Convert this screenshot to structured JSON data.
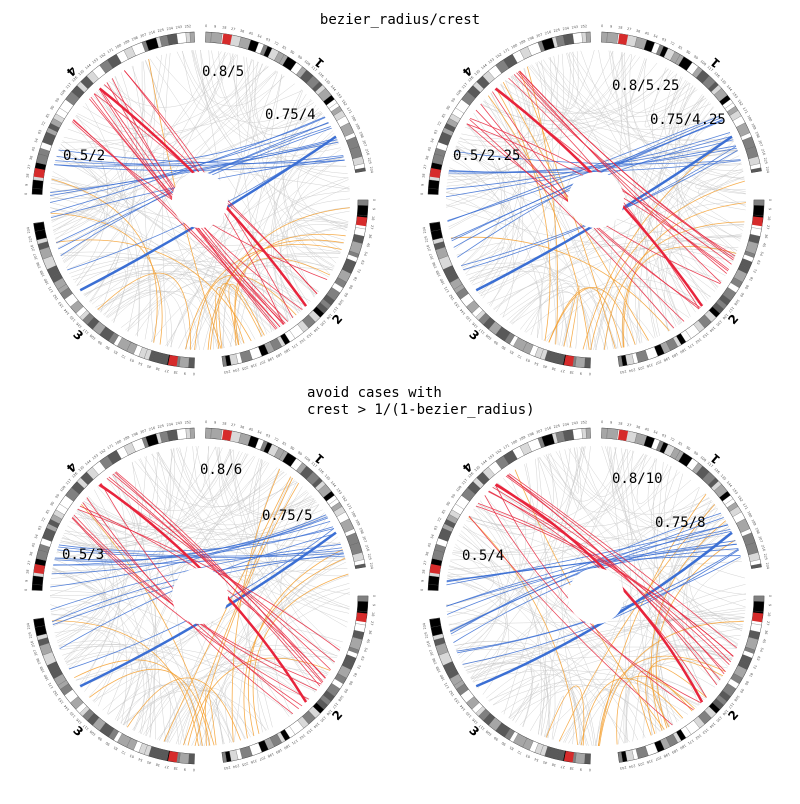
{
  "captions": {
    "top": "bezier_radius/crest",
    "middle_line1": "avoid cases with",
    "middle_line2": "crest > 1/(1-bezier_radius)"
  },
  "colors": {
    "red": "#e8243c",
    "blue": "#3b6fd4",
    "orange": "#f5a030",
    "grey": "#c8c8c8",
    "highlight": "#d62b2b"
  },
  "chromosomes": [
    "1",
    "2",
    "3",
    "4"
  ],
  "panels": [
    {
      "id": "top-left",
      "labels": {
        "orange": "0.8/5",
        "blue": "0.75/4",
        "red": "0.5/2"
      },
      "params": {
        "orange": {
          "bezier_radius": 0.8,
          "crest": 5
        },
        "blue": {
          "bezier_radius": 0.75,
          "crest": 4
        },
        "red": {
          "bezier_radius": 0.5,
          "crest": 2
        }
      }
    },
    {
      "id": "top-right",
      "labels": {
        "orange": "0.8/5.25",
        "blue": "0.75/4.25",
        "red": "0.5/2.25"
      },
      "params": {
        "orange": {
          "bezier_radius": 0.8,
          "crest": 5.25
        },
        "blue": {
          "bezier_radius": 0.75,
          "crest": 4.25
        },
        "red": {
          "bezier_radius": 0.5,
          "crest": 2.25
        }
      }
    },
    {
      "id": "bottom-left",
      "labels": {
        "orange": "0.8/6",
        "blue": "0.75/5",
        "red": "0.5/3"
      },
      "params": {
        "orange": {
          "bezier_radius": 0.8,
          "crest": 6
        },
        "blue": {
          "bezier_radius": 0.75,
          "crest": 5
        },
        "red": {
          "bezier_radius": 0.5,
          "crest": 3
        }
      }
    },
    {
      "id": "bottom-right",
      "labels": {
        "orange": "0.8/10",
        "blue": "0.75/8",
        "red": "0.5/4"
      },
      "params": {
        "orange": {
          "bezier_radius": 0.8,
          "crest": 10
        },
        "blue": {
          "bezier_radius": 0.75,
          "crest": 8
        },
        "red": {
          "bezier_radius": 0.5,
          "crest": 4
        }
      }
    }
  ]
}
